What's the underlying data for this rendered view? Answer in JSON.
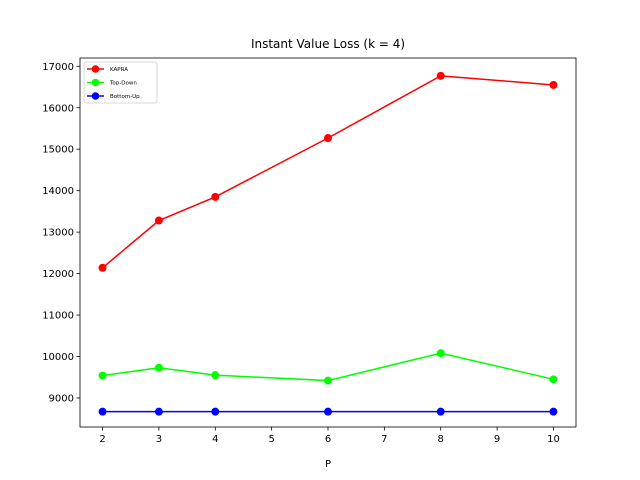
{
  "chart_data": {
    "type": "line",
    "title": "Instant Value Loss (k = 4)",
    "xlabel": "P",
    "ylabel": "",
    "x": [
      2,
      3,
      4,
      6,
      8,
      10
    ],
    "xlim": [
      1.6,
      10.4
    ],
    "ylim": [
      8300,
      17200
    ],
    "xticks": [
      2,
      3,
      4,
      5,
      6,
      7,
      8,
      9,
      10
    ],
    "yticks": [
      9000,
      10000,
      11000,
      12000,
      13000,
      14000,
      15000,
      16000,
      17000
    ],
    "grid": false,
    "legend_position": "top-left",
    "series": [
      {
        "name": "KAPRA",
        "color": "#ff0000",
        "values": [
          12140,
          13280,
          13850,
          15270,
          16770,
          16550
        ]
      },
      {
        "name": "Top-Down",
        "color": "#00ff00",
        "values": [
          9540,
          9730,
          9550,
          9420,
          10080,
          9450
        ]
      },
      {
        "name": "Bottom-Up",
        "color": "#0000ff",
        "values": [
          8670,
          8670,
          8670,
          8670,
          8670,
          8670
        ]
      }
    ]
  }
}
